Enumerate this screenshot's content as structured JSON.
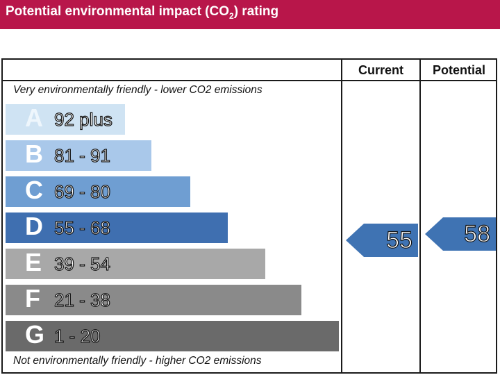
{
  "banner": {
    "title_main": "Potential environmental impact (CO",
    "title_sub": "2",
    "title_end": ") rating"
  },
  "columns": {
    "current": "Current",
    "potential": "Potential"
  },
  "notes": {
    "top": "Very environmentally friendly - lower CO2 emissions",
    "bottom": "Not environmentally friendly - higher CO2 emissions"
  },
  "colors": {
    "banner": "#b8164a",
    "arrow": "#3f73b3"
  },
  "chart_data": {
    "type": "bar",
    "title": "Potential environmental impact (CO2) rating",
    "categories": [
      "A",
      "B",
      "C",
      "D",
      "E",
      "F",
      "G"
    ],
    "bands": [
      {
        "letter": "A",
        "range": "92 plus",
        "min": 92,
        "max": 100,
        "color": "#cfe3f3"
      },
      {
        "letter": "B",
        "range": "81 - 91",
        "min": 81,
        "max": 91,
        "color": "#a9c8ea"
      },
      {
        "letter": "C",
        "range": "69 - 80",
        "min": 69,
        "max": 80,
        "color": "#6f9ed2"
      },
      {
        "letter": "D",
        "range": "55 - 68",
        "min": 55,
        "max": 68,
        "color": "#3f6fb0"
      },
      {
        "letter": "E",
        "range": "39 - 54",
        "min": 39,
        "max": 54,
        "color": "#a8a8a8"
      },
      {
        "letter": "F",
        "range": "21 - 38",
        "min": 21,
        "max": 38,
        "color": "#8a8a8a"
      },
      {
        "letter": "G",
        "range": "1 - 20",
        "min": 1,
        "max": 20,
        "color": "#6a6a6a"
      }
    ],
    "current": {
      "value": 55,
      "band": "D"
    },
    "potential": {
      "value": 58,
      "band": "D"
    }
  }
}
